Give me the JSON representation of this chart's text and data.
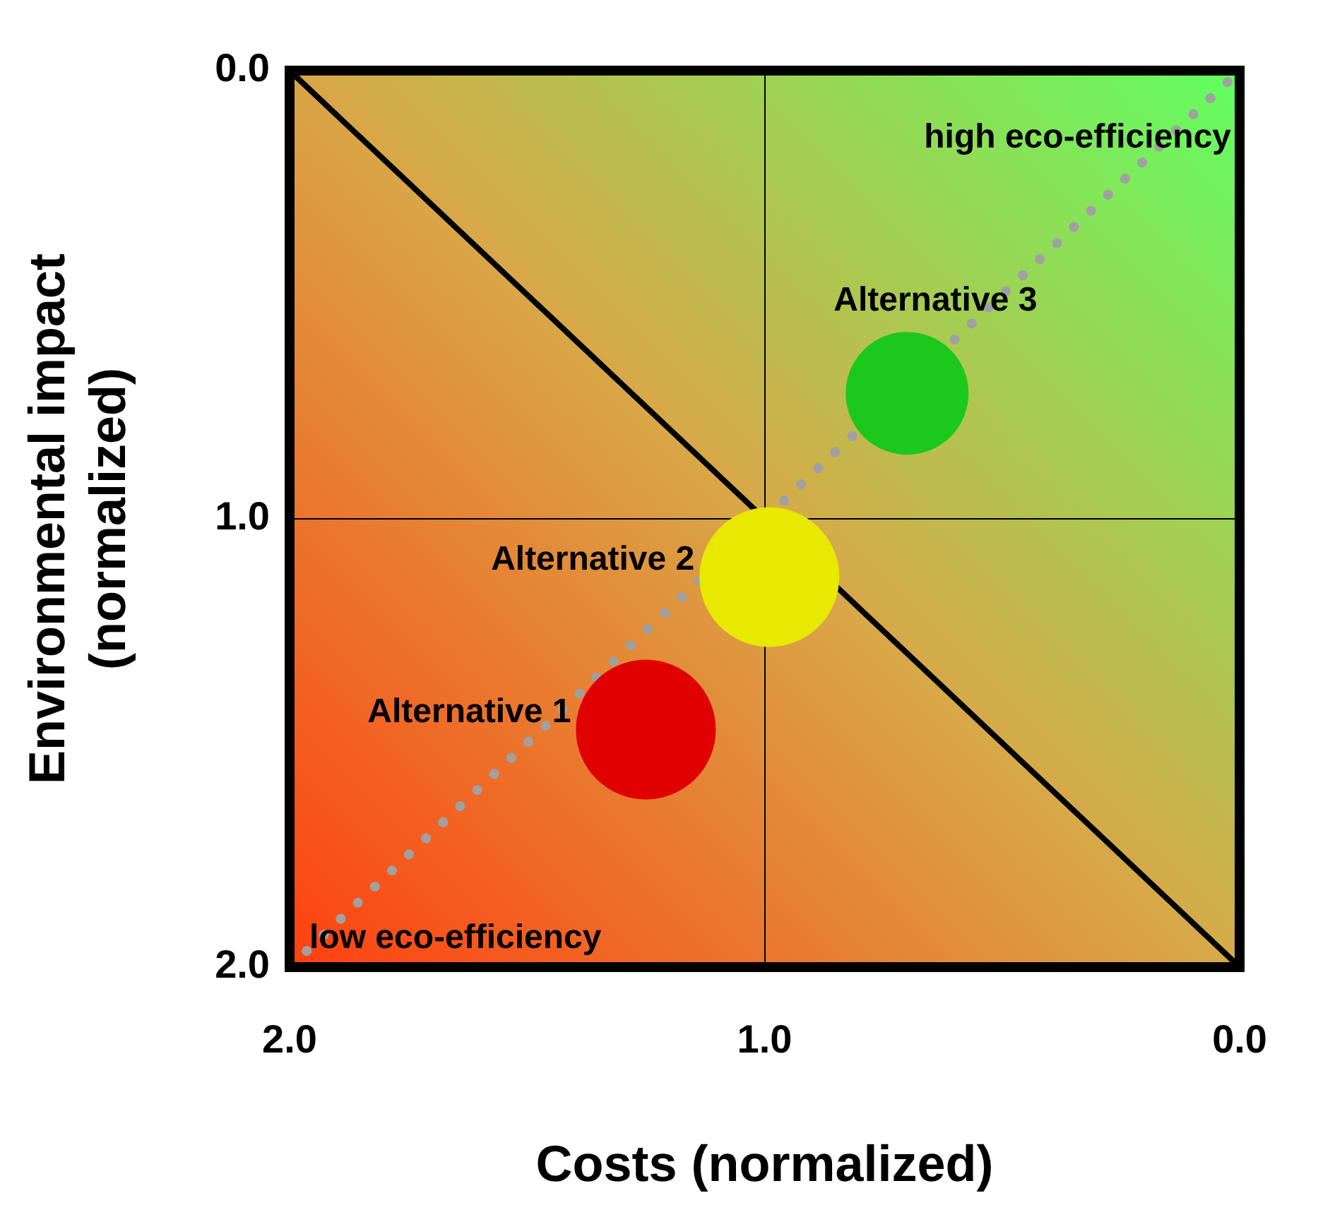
{
  "chart_data": {
    "type": "bubble",
    "xlabel": "Costs (normalized)",
    "ylabel": "Environmental impact\n(normalized)",
    "xlim": [
      2,
      0
    ],
    "ylim": [
      2,
      0
    ],
    "xticks": [
      {
        "value": 2,
        "label": "2.0"
      },
      {
        "value": 1,
        "label": "1.0"
      },
      {
        "value": 0,
        "label": "0.0"
      }
    ],
    "yticks": [
      {
        "value": 2,
        "label": "2.0"
      },
      {
        "value": 1,
        "label": "1.0"
      },
      {
        "value": 0,
        "label": "0.0"
      }
    ],
    "grid": true,
    "legend": false,
    "annotations": [
      "high eco-efficiency",
      "low eco-efficiency"
    ],
    "series": [
      {
        "name": "Alternative 1",
        "color": "#e00000",
        "x": [
          1.25
        ],
        "values": [
          1.47
        ],
        "sizes": [
          1
        ]
      },
      {
        "name": "Alternative 2",
        "color": "#e8e800",
        "x": [
          0.99
        ],
        "values": [
          1.13
        ],
        "sizes": [
          1
        ]
      },
      {
        "name": "Alternative 3",
        "color": "#1cc81c",
        "x": [
          0.7
        ],
        "values": [
          0.72
        ],
        "sizes": [
          0.77
        ]
      },
      {
        "type": "line",
        "color": "#000000",
        "line_style": "solid",
        "x": [
          2,
          0
        ],
        "values": [
          0,
          2
        ]
      },
      {
        "type": "line",
        "color": "#a0a0a0",
        "line_style": "dotted",
        "x": [
          2,
          0
        ],
        "values": [
          2,
          0
        ]
      }
    ]
  }
}
